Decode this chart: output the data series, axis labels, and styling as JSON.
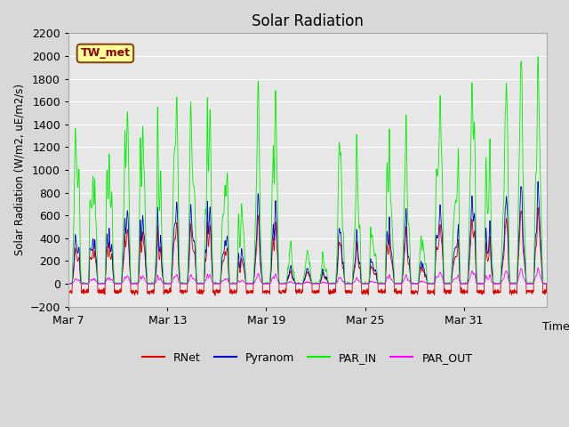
{
  "title": "Solar Radiation",
  "ylabel": "Solar Radiation (W/m2, uE/m2/s)",
  "xlabel": "Time",
  "ylim": [
    -200,
    2200
  ],
  "yticks": [
    -200,
    0,
    200,
    400,
    600,
    800,
    1000,
    1200,
    1400,
    1600,
    1800,
    2000,
    2200
  ],
  "xtick_labels": [
    "Mar 7",
    "Mar 13",
    "Mar 19",
    "Mar 25",
    "Mar 31"
  ],
  "xtick_positions": [
    0,
    6,
    12,
    18,
    24
  ],
  "background_color": "#d8d8d8",
  "inner_bg_color": "#e8e8e8",
  "colors": {
    "RNet": "#dd0000",
    "Pyranom": "#0000cc",
    "PAR_IN": "#00ee00",
    "PAR_OUT": "#ff00ff"
  },
  "station_label": "TW_met",
  "station_box_facecolor": "#ffff99",
  "station_box_edgecolor": "#8B4513",
  "n_days": 29,
  "points_per_day": 96
}
